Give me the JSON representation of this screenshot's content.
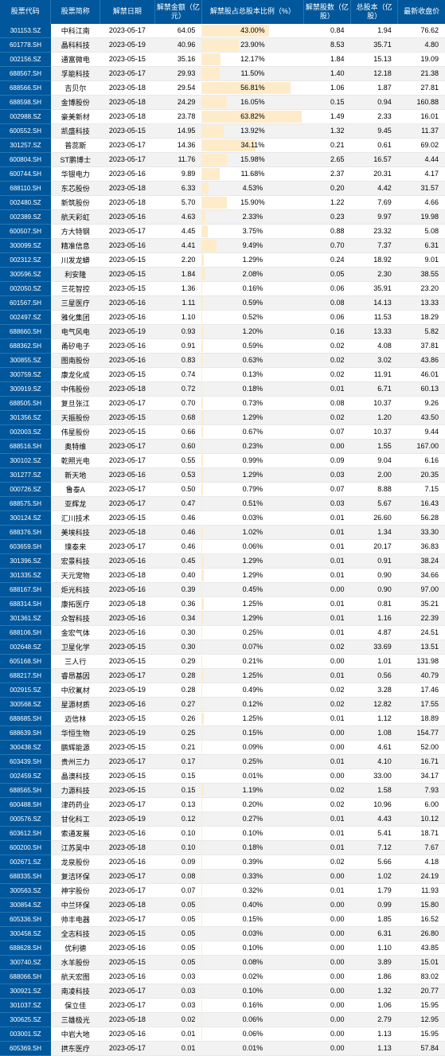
{
  "columns": [
    "股票代码",
    "股票简称",
    "解禁日期",
    "解禁金额（亿元）",
    "解禁股占总股本比例（%）",
    "解禁股数（亿股）",
    "总股本（亿股）",
    "最新收盘价"
  ],
  "bar_color": "#feebc9",
  "header_bg": "#00579c",
  "header_fg": "#ffffff",
  "row_even_bg": "#ffffff",
  "row_odd_bg": "#f2f2f2",
  "pct_max": 65,
  "rows": [
    [
      "301153.SZ",
      "中科江南",
      "2023-05-17",
      "64.05",
      "43.00%",
      "0.84",
      "1.94",
      "76.62"
    ],
    [
      "601778.SH",
      "晶科科技",
      "2023-05-19",
      "40.96",
      "23.90%",
      "8.53",
      "35.71",
      "4.80"
    ],
    [
      "002156.SZ",
      "通富微电",
      "2023-05-15",
      "35.16",
      "12.17%",
      "1.84",
      "15.13",
      "19.09"
    ],
    [
      "688567.SH",
      "孚能科技",
      "2023-05-17",
      "29.93",
      "11.50%",
      "1.40",
      "12.18",
      "21.38"
    ],
    [
      "688566.SH",
      "吉贝尔",
      "2023-05-18",
      "29.54",
      "56.81%",
      "1.06",
      "1.87",
      "27.81"
    ],
    [
      "688598.SH",
      "金博股份",
      "2023-05-18",
      "24.29",
      "16.05%",
      "0.15",
      "0.94",
      "160.88"
    ],
    [
      "002988.SZ",
      "豪美新材",
      "2023-05-18",
      "23.78",
      "63.82%",
      "1.49",
      "2.33",
      "16.01"
    ],
    [
      "600552.SH",
      "凯盛科技",
      "2023-05-15",
      "14.95",
      "13.92%",
      "1.32",
      "9.45",
      "11.37"
    ],
    [
      "301257.SZ",
      "普蕊斯",
      "2023-05-17",
      "14.36",
      "34.11%",
      "0.21",
      "0.61",
      "69.02"
    ],
    [
      "600804.SH",
      "ST鹏博士",
      "2023-05-17",
      "11.76",
      "15.98%",
      "2.65",
      "16.57",
      "4.44"
    ],
    [
      "600744.SH",
      "华银电力",
      "2023-05-16",
      "9.89",
      "11.68%",
      "2.37",
      "20.31",
      "4.17"
    ],
    [
      "688110.SH",
      "东芯股份",
      "2023-05-18",
      "6.33",
      "4.53%",
      "0.20",
      "4.42",
      "31.57"
    ],
    [
      "002480.SZ",
      "新筑股份",
      "2023-05-18",
      "5.70",
      "15.90%",
      "1.22",
      "7.69",
      "4.66"
    ],
    [
      "002389.SZ",
      "航天彩虹",
      "2023-05-16",
      "4.63",
      "2.33%",
      "0.23",
      "9.97",
      "19.98"
    ],
    [
      "600507.SH",
      "方大特钢",
      "2023-05-17",
      "4.45",
      "3.75%",
      "0.88",
      "23.32",
      "5.08"
    ],
    [
      "300099.SZ",
      "精准信息",
      "2023-05-16",
      "4.41",
      "9.49%",
      "0.70",
      "7.37",
      "6.31"
    ],
    [
      "002312.SZ",
      "川发龙蟒",
      "2023-05-15",
      "2.20",
      "1.29%",
      "0.24",
      "18.92",
      "9.01"
    ],
    [
      "300596.SZ",
      "利安隆",
      "2023-05-15",
      "1.84",
      "2.08%",
      "0.05",
      "2.30",
      "38.55"
    ],
    [
      "002050.SZ",
      "三花智控",
      "2023-05-15",
      "1.36",
      "0.16%",
      "0.06",
      "35.91",
      "23.20"
    ],
    [
      "601567.SH",
      "三星医疗",
      "2023-05-16",
      "1.11",
      "0.59%",
      "0.08",
      "14.13",
      "13.33"
    ],
    [
      "002497.SZ",
      "雅化集团",
      "2023-05-16",
      "1.10",
      "0.52%",
      "0.06",
      "11.53",
      "18.29"
    ],
    [
      "688660.SH",
      "电气风电",
      "2023-05-19",
      "0.93",
      "1.20%",
      "0.16",
      "13.33",
      "5.82"
    ],
    [
      "688362.SH",
      "甬矽电子",
      "2023-05-16",
      "0.91",
      "0.59%",
      "0.02",
      "4.08",
      "37.81"
    ],
    [
      "300855.SZ",
      "图南股份",
      "2023-05-16",
      "0.83",
      "0.63%",
      "0.02",
      "3.02",
      "43.86"
    ],
    [
      "300759.SZ",
      "康龙化成",
      "2023-05-15",
      "0.74",
      "0.13%",
      "0.02",
      "11.91",
      "46.01"
    ],
    [
      "300919.SZ",
      "中伟股份",
      "2023-05-18",
      "0.72",
      "0.18%",
      "0.01",
      "6.71",
      "60.13"
    ],
    [
      "688505.SH",
      "复旦张江",
      "2023-05-17",
      "0.70",
      "0.73%",
      "0.08",
      "10.37",
      "9.26"
    ],
    [
      "301356.SZ",
      "天振股份",
      "2023-05-15",
      "0.68",
      "1.29%",
      "0.02",
      "1.20",
      "43.50"
    ],
    [
      "002003.SZ",
      "伟星股份",
      "2023-05-15",
      "0.66",
      "0.67%",
      "0.07",
      "10.37",
      "9.44"
    ],
    [
      "688516.SH",
      "奥特维",
      "2023-05-17",
      "0.60",
      "0.23%",
      "0.00",
      "1.55",
      "167.00"
    ],
    [
      "300102.SZ",
      "乾照光电",
      "2023-05-17",
      "0.55",
      "0.99%",
      "0.09",
      "9.04",
      "6.16"
    ],
    [
      "301277.SZ",
      "新天地",
      "2023-05-16",
      "0.53",
      "1.29%",
      "0.03",
      "2.00",
      "20.35"
    ],
    [
      "000726.SZ",
      "鲁泰A",
      "2023-05-17",
      "0.50",
      "0.79%",
      "0.07",
      "8.88",
      "7.15"
    ],
    [
      "688575.SH",
      "亚辉龙",
      "2023-05-17",
      "0.47",
      "0.51%",
      "0.03",
      "5.67",
      "16.43"
    ],
    [
      "300124.SZ",
      "汇川技术",
      "2023-05-15",
      "0.46",
      "0.03%",
      "0.01",
      "26.60",
      "56.28"
    ],
    [
      "688376.SH",
      "美埃科技",
      "2023-05-18",
      "0.46",
      "1.02%",
      "0.01",
      "1.34",
      "33.30"
    ],
    [
      "603659.SH",
      "璞泰来",
      "2023-05-17",
      "0.46",
      "0.06%",
      "0.01",
      "20.17",
      "36.83"
    ],
    [
      "301396.SZ",
      "宏景科技",
      "2023-05-16",
      "0.45",
      "1.29%",
      "0.01",
      "0.91",
      "38.24"
    ],
    [
      "301335.SZ",
      "天元宠物",
      "2023-05-18",
      "0.40",
      "1.29%",
      "0.01",
      "0.90",
      "34.66"
    ],
    [
      "688167.SH",
      "炬光科技",
      "2023-05-16",
      "0.39",
      "0.45%",
      "0.00",
      "0.90",
      "97.00"
    ],
    [
      "688314.SH",
      "康拓医疗",
      "2023-05-18",
      "0.36",
      "1.25%",
      "0.01",
      "0.81",
      "35.21"
    ],
    [
      "301361.SZ",
      "众智科技",
      "2023-05-16",
      "0.34",
      "1.29%",
      "0.01",
      "1.16",
      "22.39"
    ],
    [
      "688106.SH",
      "金宏气体",
      "2023-05-16",
      "0.30",
      "0.25%",
      "0.01",
      "4.87",
      "24.51"
    ],
    [
      "002648.SZ",
      "卫星化学",
      "2023-05-15",
      "0.30",
      "0.07%",
      "0.02",
      "33.69",
      "13.51"
    ],
    [
      "605168.SH",
      "三人行",
      "2023-05-15",
      "0.29",
      "0.21%",
      "0.00",
      "1.01",
      "131.98"
    ],
    [
      "688217.SH",
      "睿昂基因",
      "2023-05-17",
      "0.28",
      "1.25%",
      "0.01",
      "0.56",
      "40.79"
    ],
    [
      "002915.SZ",
      "中欣氟材",
      "2023-05-19",
      "0.28",
      "0.49%",
      "0.02",
      "3.28",
      "17.46"
    ],
    [
      "300568.SZ",
      "星源材质",
      "2023-05-16",
      "0.27",
      "0.12%",
      "0.02",
      "12.82",
      "17.55"
    ],
    [
      "688685.SH",
      "迈信林",
      "2023-05-15",
      "0.26",
      "1.25%",
      "0.01",
      "1.12",
      "18.89"
    ],
    [
      "688639.SH",
      "华恒生物",
      "2023-05-19",
      "0.25",
      "0.15%",
      "0.00",
      "1.08",
      "154.77"
    ],
    [
      "300438.SZ",
      "鹏辉能源",
      "2023-05-15",
      "0.21",
      "0.09%",
      "0.00",
      "4.61",
      "52.00"
    ],
    [
      "603439.SH",
      "贵州三力",
      "2023-05-17",
      "0.17",
      "0.25%",
      "0.01",
      "4.10",
      "16.71"
    ],
    [
      "002459.SZ",
      "晶澳科技",
      "2023-05-15",
      "0.15",
      "0.01%",
      "0.00",
      "33.00",
      "34.17"
    ],
    [
      "688565.SH",
      "力源科技",
      "2023-05-15",
      "0.15",
      "1.19%",
      "0.02",
      "1.58",
      "7.93"
    ],
    [
      "600488.SH",
      "津药药业",
      "2023-05-17",
      "0.13",
      "0.20%",
      "0.02",
      "10.96",
      "6.00"
    ],
    [
      "000576.SZ",
      "甘化科工",
      "2023-05-19",
      "0.12",
      "0.27%",
      "0.01",
      "4.43",
      "10.12"
    ],
    [
      "603612.SH",
      "索通发展",
      "2023-05-16",
      "0.10",
      "0.10%",
      "0.01",
      "5.41",
      "18.71"
    ],
    [
      "600200.SH",
      "江苏吴中",
      "2023-05-18",
      "0.10",
      "0.18%",
      "0.01",
      "7.12",
      "7.67"
    ],
    [
      "002671.SZ",
      "龙泉股份",
      "2023-05-16",
      "0.09",
      "0.39%",
      "0.02",
      "5.66",
      "4.18"
    ],
    [
      "688335.SH",
      "复洁环保",
      "2023-05-17",
      "0.08",
      "0.33%",
      "0.00",
      "1.02",
      "24.19"
    ],
    [
      "300563.SZ",
      "神宇股份",
      "2023-05-17",
      "0.07",
      "0.32%",
      "0.01",
      "1.79",
      "11.93"
    ],
    [
      "300854.SZ",
      "中兰环保",
      "2023-05-18",
      "0.05",
      "0.40%",
      "0.00",
      "0.99",
      "15.80"
    ],
    [
      "605336.SH",
      "帅丰电器",
      "2023-05-17",
      "0.05",
      "0.15%",
      "0.00",
      "1.85",
      "16.52"
    ],
    [
      "300458.SZ",
      "全志科技",
      "2023-05-15",
      "0.05",
      "0.03%",
      "0.00",
      "6.31",
      "26.80"
    ],
    [
      "688628.SH",
      "优利德",
      "2023-05-16",
      "0.05",
      "0.10%",
      "0.00",
      "1.10",
      "43.85"
    ],
    [
      "300740.SZ",
      "水羊股份",
      "2023-05-15",
      "0.05",
      "0.08%",
      "0.00",
      "3.89",
      "15.01"
    ],
    [
      "688066.SH",
      "航天宏图",
      "2023-05-16",
      "0.03",
      "0.02%",
      "0.00",
      "1.86",
      "83.02"
    ],
    [
      "300921.SZ",
      "南凌科技",
      "2023-05-17",
      "0.03",
      "0.10%",
      "0.00",
      "1.32",
      "20.77"
    ],
    [
      "301037.SZ",
      "保立佳",
      "2023-05-17",
      "0.03",
      "0.16%",
      "0.00",
      "1.06",
      "15.95"
    ],
    [
      "300625.SZ",
      "三雄极光",
      "2023-05-18",
      "0.02",
      "0.06%",
      "0.00",
      "2.79",
      "12.95"
    ],
    [
      "003001.SZ",
      "中岩大地",
      "2023-05-16",
      "0.01",
      "0.06%",
      "0.00",
      "1.13",
      "15.95"
    ],
    [
      "605369.SH",
      "拱东医疗",
      "2023-05-17",
      "0.01",
      "0.01%",
      "0.00",
      "1.13",
      "57.84"
    ]
  ]
}
